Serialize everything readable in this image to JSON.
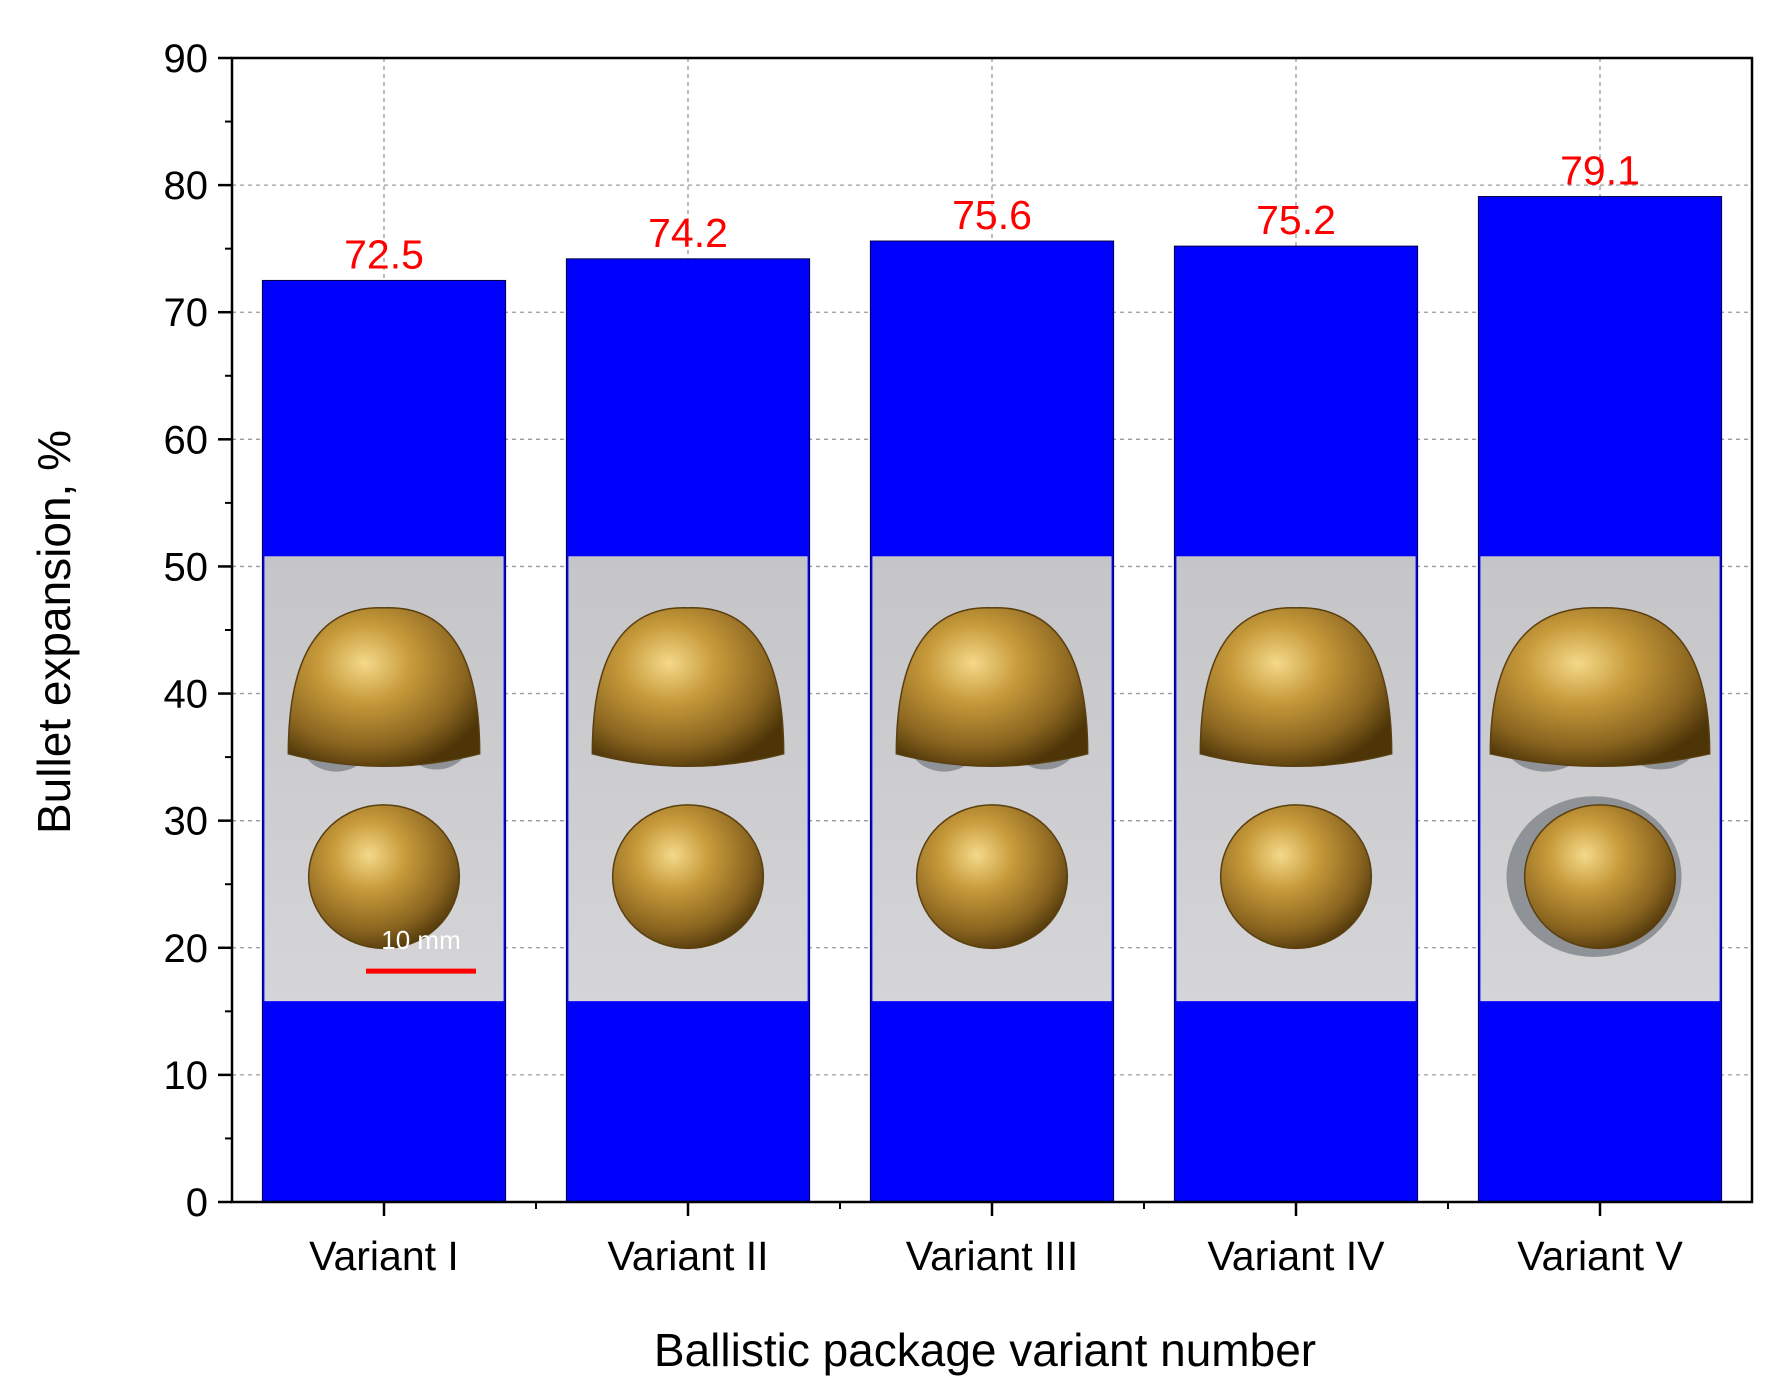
{
  "chart_data": {
    "type": "bar",
    "title": "",
    "xlabel": "Ballistic package variant number",
    "ylabel": "Bullet expansion, %",
    "categories": [
      "Variant I",
      "Variant II",
      "Variant III",
      "Variant IV",
      "Variant V"
    ],
    "values": [
      72.5,
      74.2,
      75.6,
      75.2,
      79.1
    ],
    "data_labels": [
      "72.5",
      "74.2",
      "75.6",
      "75.2",
      "79.1"
    ],
    "ylim": [
      0,
      90
    ],
    "yticks": [
      "0",
      "10",
      "20",
      "30",
      "40",
      "50",
      "60",
      "70",
      "80",
      "90"
    ],
    "grid": true,
    "bar_color": "#0000ff",
    "data_label_color": "#ff0000",
    "inset_photos": {
      "description_shown": "deformed bullet photographs overlaid on each bar",
      "scale_bar_label": "10 mm",
      "range": [
        15.8,
        50.8
      ]
    }
  }
}
